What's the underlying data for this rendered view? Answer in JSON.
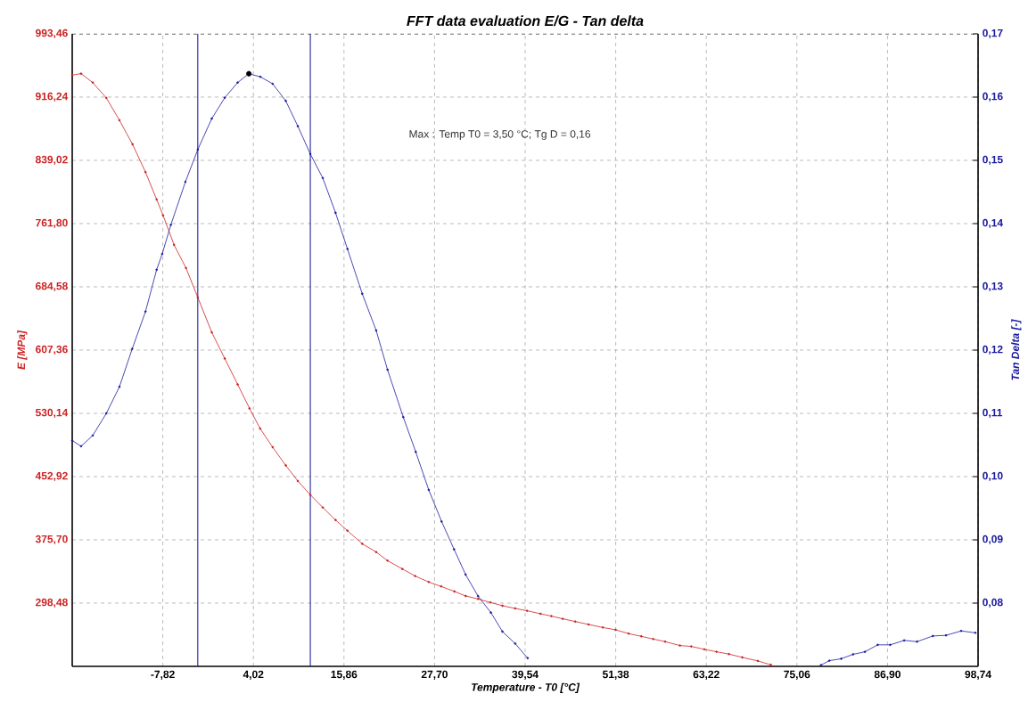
{
  "chart_data": {
    "type": "line",
    "title": "FFT data evaluation E/G - Tan delta",
    "xlabel": "Temperature - T0  [°C]",
    "ylabel": "E  [MPa]",
    "y2label": "Tan Delta  [-]",
    "annotations": [
      "Max : Temp T0 = 3,50  °C; Tg D = 0,16"
    ],
    "xlim": [
      -19.66,
      98.74
    ],
    "ylim": [
      221.26,
      993.46
    ],
    "y2lim": [
      0.07,
      0.17
    ],
    "xticks": [
      {
        "value": -7.82,
        "label": "-7,82"
      },
      {
        "value": 4.02,
        "label": "4,02"
      },
      {
        "value": 15.86,
        "label": "15,86"
      },
      {
        "value": 27.7,
        "label": "27,70"
      },
      {
        "value": 39.54,
        "label": "39,54"
      },
      {
        "value": 51.38,
        "label": "51,38"
      },
      {
        "value": 63.22,
        "label": "63,22"
      },
      {
        "value": 75.06,
        "label": "75,06"
      },
      {
        "value": 86.9,
        "label": "86,90"
      },
      {
        "value": 98.74,
        "label": "98,74"
      }
    ],
    "yticks": [
      {
        "value": 298.48,
        "label": "298,48"
      },
      {
        "value": 375.7,
        "label": "375,70"
      },
      {
        "value": 452.92,
        "label": "452,92"
      },
      {
        "value": 530.14,
        "label": "530,14"
      },
      {
        "value": 607.36,
        "label": "607,36"
      },
      {
        "value": 684.58,
        "label": "684,58"
      },
      {
        "value": 761.8,
        "label": "761,80"
      },
      {
        "value": 839.02,
        "label": "839,02"
      },
      {
        "value": 916.24,
        "label": "916,24"
      },
      {
        "value": 993.46,
        "label": "993,46"
      }
    ],
    "y2ticks": [
      {
        "value": 0.08,
        "label": "0,08"
      },
      {
        "value": 0.09,
        "label": "0,09"
      },
      {
        "value": 0.1,
        "label": "0,10"
      },
      {
        "value": 0.11,
        "label": "0,11"
      },
      {
        "value": 0.12,
        "label": "0,12"
      },
      {
        "value": 0.13,
        "label": "0,13"
      },
      {
        "value": 0.14,
        "label": "0,14"
      },
      {
        "value": 0.15,
        "label": "0,15"
      },
      {
        "value": 0.16,
        "label": "0,16"
      },
      {
        "value": 0.17,
        "label": "0,17"
      }
    ],
    "grid": true,
    "marker": "circle",
    "ref_lines": [
      {
        "axis": "x",
        "value": -3.25,
        "color": "#1a1aa0"
      },
      {
        "axis": "x",
        "value": 11.46,
        "color": "#1a1aa0"
      }
    ],
    "series": [
      {
        "color": "#cc2222",
        "x": [
          -19.66,
          -18.5,
          -16.98,
          -15.2,
          -13.49,
          -11.78,
          -10.08,
          -8.63,
          -7.79,
          -6.35,
          -4.79,
          -3.25,
          -1.42,
          0.28,
          1.96,
          3.51,
          4.9,
          6.54,
          8.25,
          9.83,
          11.46,
          13.09,
          14.76,
          16.31,
          18.25,
          20.07,
          21.55,
          23.49,
          25.16,
          26.94,
          28.57,
          30.29,
          31.76,
          33.39,
          35.02,
          36.57,
          38.24,
          39.79,
          41.54,
          42.97,
          44.45,
          46.08,
          47.83,
          49.69,
          51.36,
          53.07,
          54.73,
          56.28,
          57.84,
          59.77,
          61.25,
          62.96,
          64.55,
          66.18,
          67.92,
          69.95,
          71.65
        ],
        "values": [
          943.1,
          944.9,
          934.0,
          915.2,
          888.0,
          858.7,
          824.6,
          791.3,
          772.0,
          735.8,
          707.6,
          671.7,
          629.0,
          597.0,
          565.5,
          536.2,
          511.6,
          488.8,
          466.6,
          447.5,
          430.7,
          415.2,
          399.9,
          386.9,
          370.9,
          360.8,
          350.3,
          340.2,
          331.5,
          324.2,
          318.8,
          312.7,
          307.2,
          303.5,
          299.2,
          295.3,
          292.0,
          289.1,
          285.5,
          282.6,
          279.3,
          276.0,
          272.4,
          268.7,
          265.9,
          261.2,
          257.9,
          254.6,
          251.4,
          246.7,
          245.6,
          242.0,
          239.1,
          236.2,
          232.2,
          227.9,
          223.1
        ]
      },
      {
        "axis": "y2",
        "color": "#1a1aa0",
        "x": [
          -19.66,
          -18.5,
          -16.98,
          -15.2,
          -13.49,
          -11.82,
          -10.08,
          -8.63,
          -7.9,
          -6.77,
          -4.87,
          -3.25,
          -1.42,
          0.28,
          1.96,
          3.43,
          4.94,
          6.54,
          8.25,
          9.83,
          11.46,
          13.09,
          14.76,
          16.31,
          18.25,
          20.07,
          21.55,
          23.61,
          25.24,
          26.94,
          28.62,
          30.25,
          31.76,
          33.39,
          35.06,
          36.57,
          38.24,
          39.87,
          59.0,
          78.21,
          79.3,
          80.85,
          82.4,
          83.95,
          85.62,
          87.25,
          89.08,
          90.76,
          92.83,
          94.55,
          96.53,
          98.39
        ],
        "values": [
          0.1057,
          0.1048,
          0.1065,
          0.11,
          0.1142,
          0.1202,
          0.1261,
          0.1327,
          0.1352,
          0.1398,
          0.1466,
          0.1517,
          0.1566,
          0.1599,
          0.1623,
          0.1637,
          0.1632,
          0.1621,
          0.1594,
          0.1554,
          0.151,
          0.1472,
          0.1417,
          0.136,
          0.1289,
          0.1231,
          0.1169,
          0.1094,
          0.1039,
          0.0979,
          0.0929,
          0.0885,
          0.0845,
          0.0811,
          0.0785,
          0.0755,
          0.0736,
          0.0713,
          null,
          0.0702,
          0.0709,
          0.0712,
          0.0719,
          0.0723,
          0.0734,
          0.0734,
          0.0741,
          0.0739,
          0.0748,
          0.0749,
          0.0756,
          0.0753
        ]
      },
      {
        "type": "scatter",
        "axis": "y2",
        "color": "#000000",
        "x": [
          3.43
        ],
        "values": [
          0.1637
        ]
      }
    ]
  }
}
